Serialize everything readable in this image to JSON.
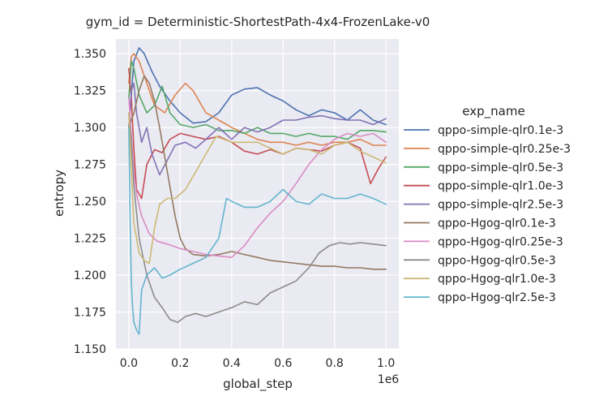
{
  "chart_data": {
    "type": "line",
    "title": "gym_id = Deterministic-ShortestPath-4x4-FrozenLake-v0",
    "xlabel": "global_step",
    "ylabel": "entropy",
    "x_offset_label": "1e6",
    "xlim": [
      -0.05,
      1.05
    ],
    "ylim": [
      1.15,
      1.36
    ],
    "grid": true,
    "legend_title": "exp_name",
    "legend_position": "right",
    "xticks": [
      {
        "value": 0.0,
        "label": "0.0"
      },
      {
        "value": 0.2,
        "label": "0.2"
      },
      {
        "value": 0.4,
        "label": "0.4"
      },
      {
        "value": 0.6,
        "label": "0.6"
      },
      {
        "value": 0.8,
        "label": "0.8"
      },
      {
        "value": 1.0,
        "label": "1.0"
      }
    ],
    "yticks": [
      {
        "value": 1.15,
        "label": "1.150"
      },
      {
        "value": 1.175,
        "label": "1.175"
      },
      {
        "value": 1.2,
        "label": "1.200"
      },
      {
        "value": 1.225,
        "label": "1.225"
      },
      {
        "value": 1.25,
        "label": "1.250"
      },
      {
        "value": 1.275,
        "label": "1.275"
      },
      {
        "value": 1.3,
        "label": "1.300"
      },
      {
        "value": 1.325,
        "label": "1.325"
      },
      {
        "value": 1.35,
        "label": "1.350"
      }
    ],
    "series": [
      {
        "name": "qppo-simple-qlr0.1e-3",
        "color": "#4c72b0",
        "x": [
          0.0,
          0.02,
          0.04,
          0.06,
          0.09,
          0.12,
          0.16,
          0.2,
          0.25,
          0.3,
          0.35,
          0.4,
          0.45,
          0.5,
          0.55,
          0.6,
          0.65,
          0.7,
          0.75,
          0.8,
          0.85,
          0.9,
          0.95,
          1.0
        ],
        "y": [
          1.3,
          1.345,
          1.354,
          1.35,
          1.338,
          1.328,
          1.318,
          1.31,
          1.303,
          1.304,
          1.31,
          1.322,
          1.326,
          1.327,
          1.322,
          1.318,
          1.312,
          1.308,
          1.312,
          1.31,
          1.305,
          1.312,
          1.305,
          1.302
        ]
      },
      {
        "name": "qppo-simple-qlr0.25e-3",
        "color": "#dd8452",
        "x": [
          0.0,
          0.01,
          0.02,
          0.04,
          0.07,
          0.1,
          0.14,
          0.18,
          0.22,
          0.25,
          0.3,
          0.35,
          0.4,
          0.45,
          0.5,
          0.55,
          0.6,
          0.65,
          0.7,
          0.75,
          0.8,
          0.85,
          0.9,
          0.95,
          1.0
        ],
        "y": [
          1.33,
          1.348,
          1.35,
          1.345,
          1.33,
          1.315,
          1.31,
          1.322,
          1.33,
          1.325,
          1.31,
          1.305,
          1.3,
          1.296,
          1.292,
          1.29,
          1.29,
          1.288,
          1.29,
          1.288,
          1.29,
          1.29,
          1.292,
          1.288,
          1.288
        ]
      },
      {
        "name": "qppo-simple-qlr0.5e-3",
        "color": "#55a868",
        "x": [
          0.0,
          0.01,
          0.02,
          0.04,
          0.07,
          0.1,
          0.13,
          0.16,
          0.2,
          0.25,
          0.3,
          0.35,
          0.4,
          0.45,
          0.5,
          0.55,
          0.6,
          0.65,
          0.7,
          0.75,
          0.8,
          0.85,
          0.9,
          0.95,
          1.0
        ],
        "y": [
          1.32,
          1.345,
          1.34,
          1.322,
          1.31,
          1.315,
          1.328,
          1.31,
          1.302,
          1.3,
          1.302,
          1.298,
          1.298,
          1.296,
          1.3,
          1.296,
          1.296,
          1.294,
          1.296,
          1.294,
          1.294,
          1.292,
          1.298,
          1.298,
          1.297
        ]
      },
      {
        "name": "qppo-simple-qlr1.0e-3",
        "color": "#c44e52",
        "x": [
          0.0,
          0.01,
          0.02,
          0.03,
          0.05,
          0.07,
          0.1,
          0.13,
          0.16,
          0.2,
          0.25,
          0.3,
          0.35,
          0.4,
          0.45,
          0.5,
          0.55,
          0.6,
          0.65,
          0.7,
          0.75,
          0.8,
          0.85,
          0.9,
          0.94,
          0.97,
          1.0
        ],
        "y": [
          1.34,
          1.32,
          1.285,
          1.258,
          1.252,
          1.275,
          1.285,
          1.283,
          1.292,
          1.296,
          1.294,
          1.292,
          1.294,
          1.29,
          1.284,
          1.282,
          1.285,
          1.282,
          1.286,
          1.285,
          1.284,
          1.288,
          1.29,
          1.286,
          1.262,
          1.272,
          1.28
        ]
      },
      {
        "name": "qppo-simple-qlr2.5e-3",
        "color": "#8172b3",
        "x": [
          0.0,
          0.01,
          0.02,
          0.03,
          0.05,
          0.07,
          0.09,
          0.12,
          0.15,
          0.18,
          0.22,
          0.26,
          0.3,
          0.35,
          0.4,
          0.45,
          0.5,
          0.55,
          0.6,
          0.65,
          0.7,
          0.75,
          0.8,
          0.85,
          0.9,
          0.95,
          1.0
        ],
        "y": [
          1.3,
          1.325,
          1.33,
          1.31,
          1.29,
          1.3,
          1.282,
          1.268,
          1.278,
          1.288,
          1.29,
          1.286,
          1.292,
          1.3,
          1.292,
          1.3,
          1.297,
          1.3,
          1.305,
          1.305,
          1.307,
          1.308,
          1.306,
          1.305,
          1.305,
          1.302,
          1.306
        ]
      },
      {
        "name": "qppo-Hgog-qlr0.1e-3",
        "color": "#937860",
        "x": [
          0.0,
          0.02,
          0.04,
          0.06,
          0.08,
          0.1,
          0.12,
          0.14,
          0.16,
          0.18,
          0.2,
          0.22,
          0.25,
          0.3,
          0.35,
          0.4,
          0.45,
          0.5,
          0.55,
          0.6,
          0.65,
          0.7,
          0.75,
          0.8,
          0.85,
          0.9,
          0.95,
          1.0
        ],
        "y": [
          1.3,
          1.31,
          1.325,
          1.335,
          1.33,
          1.318,
          1.3,
          1.28,
          1.26,
          1.24,
          1.225,
          1.218,
          1.214,
          1.213,
          1.214,
          1.216,
          1.214,
          1.212,
          1.21,
          1.209,
          1.208,
          1.207,
          1.206,
          1.206,
          1.205,
          1.205,
          1.204,
          1.204
        ]
      },
      {
        "name": "qppo-Hgog-qlr0.25e-3",
        "color": "#da8bc3",
        "x": [
          0.0,
          0.01,
          0.02,
          0.03,
          0.05,
          0.08,
          0.11,
          0.15,
          0.2,
          0.25,
          0.3,
          0.35,
          0.4,
          0.45,
          0.5,
          0.55,
          0.6,
          0.65,
          0.7,
          0.75,
          0.8,
          0.85,
          0.9,
          0.95,
          1.0
        ],
        "y": [
          1.32,
          1.295,
          1.27,
          1.255,
          1.24,
          1.228,
          1.223,
          1.221,
          1.218,
          1.216,
          1.214,
          1.213,
          1.212,
          1.22,
          1.232,
          1.242,
          1.25,
          1.262,
          1.275,
          1.285,
          1.292,
          1.296,
          1.294,
          1.296,
          1.29
        ]
      },
      {
        "name": "qppo-Hgog-qlr0.5e-3",
        "color": "#8c8c8c",
        "x": [
          0.0,
          0.01,
          0.02,
          0.04,
          0.07,
          0.1,
          0.13,
          0.16,
          0.19,
          0.22,
          0.26,
          0.3,
          0.35,
          0.4,
          0.45,
          0.5,
          0.55,
          0.6,
          0.65,
          0.7,
          0.74,
          0.78,
          0.82,
          0.86,
          0.9,
          0.95,
          1.0
        ],
        "y": [
          1.31,
          1.29,
          1.26,
          1.225,
          1.2,
          1.185,
          1.178,
          1.17,
          1.168,
          1.172,
          1.174,
          1.172,
          1.175,
          1.178,
          1.182,
          1.18,
          1.188,
          1.192,
          1.196,
          1.205,
          1.215,
          1.22,
          1.222,
          1.221,
          1.222,
          1.221,
          1.22
        ]
      },
      {
        "name": "qppo-Hgog-qlr1.0e-3",
        "color": "#ccb974",
        "x": [
          0.0,
          0.01,
          0.02,
          0.04,
          0.06,
          0.08,
          0.1,
          0.12,
          0.15,
          0.18,
          0.22,
          0.26,
          0.3,
          0.34,
          0.4,
          0.45,
          0.5,
          0.55,
          0.6,
          0.65,
          0.7,
          0.75,
          0.8,
          0.85,
          0.9,
          0.95,
          1.0
        ],
        "y": [
          1.31,
          1.27,
          1.235,
          1.215,
          1.21,
          1.208,
          1.232,
          1.248,
          1.252,
          1.252,
          1.258,
          1.27,
          1.282,
          1.294,
          1.29,
          1.29,
          1.29,
          1.286,
          1.282,
          1.286,
          1.285,
          1.282,
          1.288,
          1.29,
          1.284,
          1.28,
          1.276
        ]
      },
      {
        "name": "qppo-Hgog-qlr2.5e-3",
        "color": "#64b5cd",
        "x": [
          0.0,
          0.005,
          0.01,
          0.015,
          0.02,
          0.03,
          0.04,
          0.05,
          0.07,
          0.1,
          0.13,
          0.16,
          0.2,
          0.25,
          0.3,
          0.35,
          0.38,
          0.4,
          0.45,
          0.5,
          0.55,
          0.6,
          0.65,
          0.7,
          0.75,
          0.8,
          0.85,
          0.9,
          0.95,
          1.0
        ],
        "y": [
          1.3,
          1.24,
          1.195,
          1.178,
          1.168,
          1.163,
          1.16,
          1.19,
          1.2,
          1.205,
          1.198,
          1.2,
          1.204,
          1.208,
          1.212,
          1.225,
          1.252,
          1.25,
          1.246,
          1.246,
          1.25,
          1.258,
          1.25,
          1.248,
          1.255,
          1.252,
          1.252,
          1.255,
          1.252,
          1.248
        ]
      }
    ]
  }
}
